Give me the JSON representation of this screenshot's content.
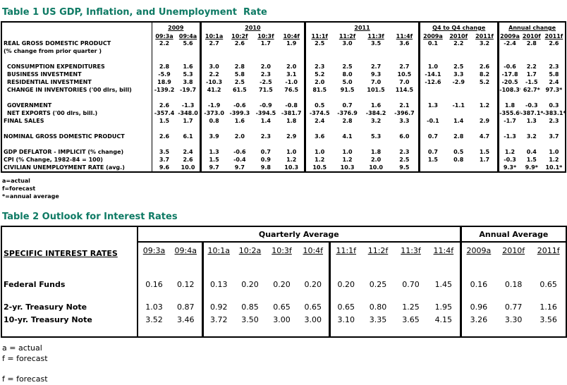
{
  "accent_color": "#0e7a64",
  "table1": {
    "title": "Table 1 US GDP, Inflation, and Unemployment  Rate",
    "groups": [
      {
        "label": "2009",
        "span": 2
      },
      {
        "label": "2010",
        "span": 4
      },
      {
        "label": "2011",
        "span": 4
      },
      {
        "label": "Q4 to Q4 change",
        "span": 3
      },
      {
        "label": "Annual change",
        "span": 3
      }
    ],
    "columns": [
      "09:3a",
      "09:4a",
      "10:1a",
      "10:2f",
      "10:3f",
      "10:4f",
      "11:1f",
      "11:2f",
      "11:3f",
      "11:4f",
      "2009a",
      "2010f",
      "2011f",
      "2009a",
      "2010f",
      "2011f"
    ],
    "rows": [
      {
        "label": "REAL GROSS DOMESTIC PRODUCT",
        "indent": false,
        "values": [
          "2.2",
          "5.6",
          "2.7",
          "2.6",
          "1.7",
          "1.9",
          "2.5",
          "3.0",
          "3.5",
          "3.6",
          "0.1",
          "2.2",
          "3.2",
          "-2.4",
          "2.8",
          "2.6"
        ]
      },
      {
        "label": "(% change from prior quarter )",
        "indent": false,
        "values": [
          "",
          "",
          "",
          "",
          "",
          "",
          "",
          "",
          "",
          "",
          "",
          "",
          "",
          "",
          "",
          ""
        ]
      },
      {
        "blank": true
      },
      {
        "label": "CONSUMPTION EXPENDITURES",
        "indent": true,
        "values": [
          "2.8",
          "1.6",
          "3.0",
          "2.8",
          "2.0",
          "2.0",
          "2.3",
          "2.5",
          "2.7",
          "2.7",
          "1.0",
          "2.5",
          "2.6",
          "-0.6",
          "2.2",
          "2.3"
        ]
      },
      {
        "label": "BUSINESS INVESTMENT",
        "indent": true,
        "values": [
          "-5.9",
          "5.3",
          "2.2",
          "5.8",
          "2.3",
          "3.1",
          "5.2",
          "8.0",
          "9.3",
          "10.5",
          "-14.1",
          "3.3",
          "8.2",
          "-17.8",
          "1.7",
          "5.8"
        ]
      },
      {
        "label": "RESIDENTIAL INVESTMENT",
        "indent": true,
        "values": [
          "18.9",
          "3.8",
          "-10.3",
          "2.5",
          "-2.5",
          "-1.0",
          "2.0",
          "5.0",
          "7.0",
          "7.0",
          "-12.6",
          "-2.9",
          "5.2",
          "-20.5",
          "-1.5",
          "2.4"
        ]
      },
      {
        "label": "CHANGE IN INVENTORIES ('00 dlrs, bill)",
        "indent": true,
        "values": [
          "-139.2",
          "-19.7",
          "41.2",
          "61.5",
          "71.5",
          "76.5",
          "81.5",
          "91.5",
          "101.5",
          "114.5",
          "",
          "",
          "",
          "-108.3*",
          "62.7*",
          "97.3*"
        ]
      },
      {
        "blank": true
      },
      {
        "label": "GOVERNMENT",
        "indent": true,
        "values": [
          "2.6",
          "-1.3",
          "-1.9",
          "-0.6",
          "-0.9",
          "-0.8",
          "0.5",
          "0.7",
          "1.6",
          "2.1",
          "1.3",
          "-1.1",
          "1.2",
          "1.8",
          "-0.3",
          "0.3"
        ]
      },
      {
        "label": "NET EXPORTS ('00 dlrs, bill.)",
        "indent": true,
        "values": [
          "-357.4",
          "-348.0",
          "-373.0",
          "-399.3",
          "-394.5",
          "-381.7",
          "-374.5",
          "-376.9",
          "-384.2",
          "-396.7",
          "",
          "",
          "",
          "-355.6*",
          "-387.1*",
          "-383.1*"
        ]
      },
      {
        "label": "FINAL SALES",
        "indent": false,
        "values": [
          "1.5",
          "1.7",
          "0.8",
          "1.6",
          "1.4",
          "1.8",
          "2.4",
          "2.8",
          "3.2",
          "3.3",
          "-0.1",
          "1.4",
          "2.9",
          "-1.7",
          "1.3",
          "2.3"
        ]
      },
      {
        "blank": true
      },
      {
        "label": "NOMINAL GROSS DOMESTIC PRODUCT",
        "indent": false,
        "values": [
          "2.6",
          "6.1",
          "3.9",
          "2.0",
          "2.3",
          "2.9",
          "3.6",
          "4.1",
          "5.3",
          "6.0",
          "0.7",
          "2.8",
          "4.7",
          "-1.3",
          "3.2",
          "3.7"
        ]
      },
      {
        "blank": true
      },
      {
        "label": "GDP DEFLATOR - IMPLICIT (% change)",
        "indent": false,
        "values": [
          "3.5",
          "2.4",
          "1.3",
          "-0.6",
          "0.7",
          "1.0",
          "1.0",
          "1.0",
          "1.8",
          "2.3",
          "0.7",
          "0.5",
          "1.5",
          "1.2",
          "0.4",
          "1.0"
        ]
      },
      {
        "label": "CPI (% Change, 1982-84 = 100)",
        "indent": false,
        "values": [
          "3.7",
          "2.6",
          "1.5",
          "-0.4",
          "0.9",
          "1.2",
          "1.2",
          "1.2",
          "2.0",
          "2.5",
          "1.5",
          "0.8",
          "1.7",
          "-0.3",
          "1.5",
          "1.2"
        ]
      },
      {
        "label": "CIVILIAN UNEMPLOYMENT RATE (avg.)",
        "indent": false,
        "values": [
          "9.6",
          "10.0",
          "9.7",
          "9.7",
          "9.8",
          "10.3",
          "10.5",
          "10.3",
          "10.0",
          "9.5",
          "",
          "",
          "",
          "9.3*",
          "9.9*",
          "10.1*"
        ]
      }
    ],
    "footnotes": [
      "a=actual",
      "f=forecast",
      "*=annual average"
    ]
  },
  "table2": {
    "title": "Table 2 Outlook for Interest Rates",
    "group_quarterly": "Quarterly Average",
    "group_annual": "Annual Average",
    "row_header": "SPECIFIC INTEREST RATES",
    "columns": [
      "09:3a",
      "09:4a",
      "10:1a",
      "10:2a",
      "10:3f",
      "10:4f",
      "11:1f",
      "11:2f",
      "11:3f",
      "11:4f",
      "2009a",
      "2010f",
      "2011f"
    ],
    "rows": [
      {
        "label": "Federal Funds",
        "values": [
          "0.16",
          "0.12",
          "0.13",
          "0.20",
          "0.20",
          "0.20",
          "0.20",
          "0.25",
          "0.70",
          "1.45",
          "0.16",
          "0.18",
          "0.65"
        ]
      },
      {
        "label": "2-yr. Treasury Note",
        "values": [
          "1.03",
          "0.87",
          "0.92",
          "0.85",
          "0.65",
          "0.65",
          "0.65",
          "0.80",
          "1.25",
          "1.95",
          "0.96",
          "0.77",
          "1.16"
        ]
      },
      {
        "label": "10-yr. Treasury Note",
        "values": [
          "3.52",
          "3.46",
          "3.72",
          "3.50",
          "3.00",
          "3.00",
          "3.10",
          "3.35",
          "3.65",
          "4.15",
          "3.26",
          "3.30",
          "3.56"
        ]
      }
    ],
    "footnotes": [
      "a = actual",
      "f = forecast"
    ]
  },
  "footer": {
    "note": "f = forecast"
  }
}
